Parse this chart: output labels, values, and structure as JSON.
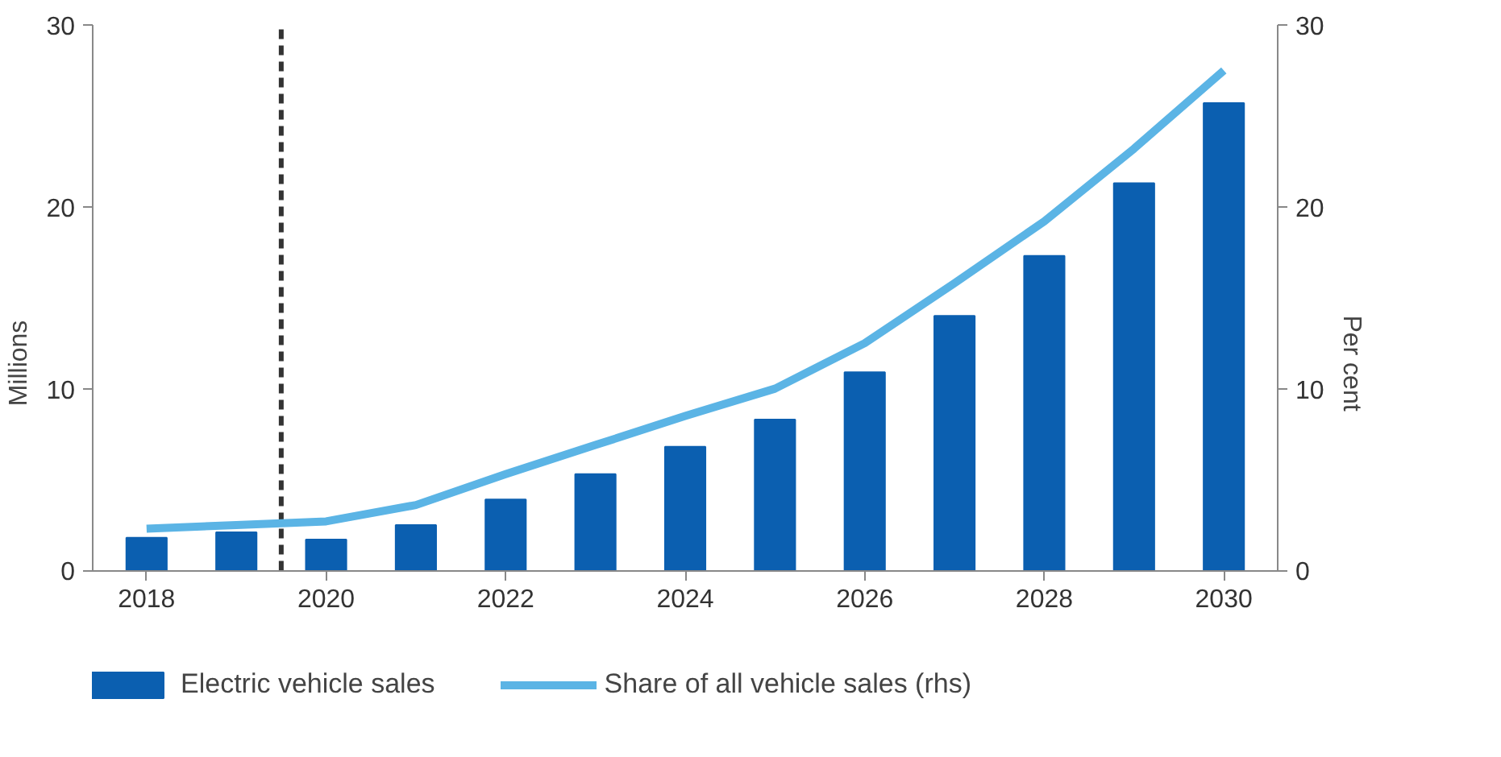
{
  "chart_data": {
    "type": "bar",
    "x": [
      2018,
      2019,
      2020,
      2021,
      2022,
      2023,
      2024,
      2025,
      2026,
      2027,
      2028,
      2029,
      2030
    ],
    "series": [
      {
        "name": "Electric vehicle sales",
        "color": "#0b5fb0",
        "values": [
          1.8,
          2.1,
          1.7,
          2.5,
          3.9,
          5.3,
          6.8,
          8.3,
          10.9,
          14.0,
          17.3,
          21.3,
          25.7
        ]
      },
      {
        "name": "Share of all vehicle sales (rhs)",
        "type": "line",
        "axis": "y2",
        "color": "#5bb4e5",
        "values": [
          2.3,
          2.5,
          2.7,
          3.6,
          5.3,
          6.9,
          8.5,
          10.0,
          12.5,
          15.8,
          19.2,
          23.2,
          27.5
        ]
      }
    ],
    "ylabel": "Millions",
    "y2label": "Per cent",
    "xlim": [
      2017.4,
      2030.6
    ],
    "xticks": [
      2018,
      2020,
      2022,
      2024,
      2026,
      2028,
      2030
    ],
    "ylim": [
      0,
      30
    ],
    "yticks": [
      0,
      10,
      20,
      30
    ],
    "y2lim": [
      0,
      30
    ],
    "y2ticks": [
      0,
      10,
      20,
      30
    ],
    "ref_lines": [
      {
        "axis": "x",
        "value": 2019.5,
        "color": "#333333",
        "line_style": "dashed"
      }
    ],
    "grid": false,
    "legend": "bottom"
  }
}
